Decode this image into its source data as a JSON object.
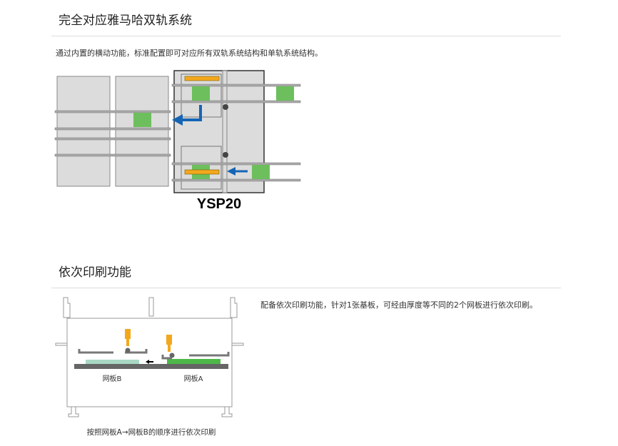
{
  "section1": {
    "title": "完全对应雅马哈双轨系统",
    "description": "通过内置的横动功能，标准配置即可对应所有双轨系统结构和单轨系统结构。",
    "diagram_label": "YSP20"
  },
  "section2": {
    "title": "依次印刷功能",
    "description": "配备依次印刷功能，针对1张基板，可经由厚度等不同的2个网板进行依次印刷。",
    "label_b": "网板B",
    "label_a": "网板A",
    "caption": "按照网板A→网板B的顺序进行依次印刷"
  },
  "colors": {
    "green": "#6cbf5c",
    "orange": "#f3a81c",
    "blue": "#1565b5",
    "panel": "#dcdcdc"
  }
}
